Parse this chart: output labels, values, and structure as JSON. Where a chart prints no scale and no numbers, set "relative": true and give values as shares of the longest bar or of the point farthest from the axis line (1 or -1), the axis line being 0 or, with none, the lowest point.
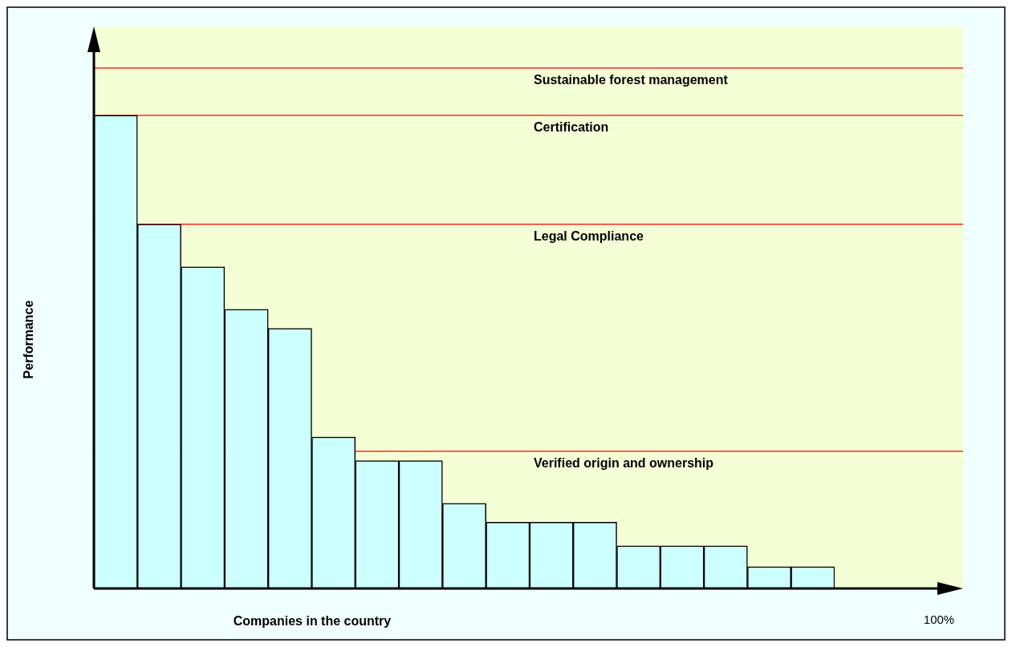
{
  "chart_data": {
    "type": "bar",
    "relative": true,
    "xlabel": "Companies in the country",
    "ylabel": "Performance",
    "categories": [
      null,
      null,
      null,
      null,
      null,
      null,
      null,
      null,
      null,
      null,
      null,
      null,
      null,
      null,
      null,
      null,
      null
    ],
    "values": [
      1,
      0.77,
      0.68,
      0.59,
      0.55,
      0.32,
      0.27,
      0.27,
      0.18,
      0.14,
      0.14,
      0.14,
      0.09,
      0.09,
      0.09,
      0.046,
      0.046
    ],
    "color": "#ccffff",
    "ref_lines": [
      {
        "axis": "y",
        "value": 1.1,
        "label": "Sustainable forest management",
        "color": "#ff0000"
      },
      {
        "axis": "y",
        "value": 1.0,
        "label": "Certification",
        "color": "#ff0000"
      },
      {
        "axis": "y",
        "value": 0.77,
        "label": "Legal Compliance",
        "color": "#ff0000"
      },
      {
        "axis": "y",
        "value": 0.29,
        "label": "Verified origin and ownership",
        "color": "#ff0000"
      }
    ],
    "annotations": [
      "100%"
    ],
    "legend": false
  }
}
